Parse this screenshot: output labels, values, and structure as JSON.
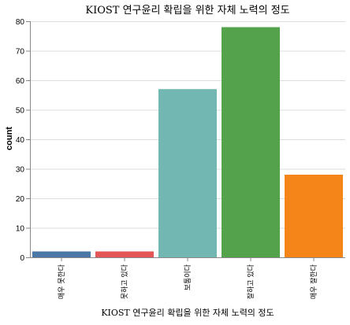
{
  "chart_data": {
    "type": "bar",
    "title": "KIOST 연구윤리 확립을 위한 자체 노력의 정도",
    "xlabel": "KIOST 연구윤리 확립을 위한 자체 노력의 정도",
    "ylabel": "count",
    "categories": [
      "매우 못한다",
      "못하고 있다",
      "보통이다",
      "잘하고 있다",
      "매우 잘한다"
    ],
    "values": [
      2,
      2,
      57,
      78,
      28
    ],
    "colors": [
      "#4c78a8",
      "#e45756",
      "#72b7b2",
      "#54a24b",
      "#f58518"
    ],
    "ylim": [
      0,
      80
    ],
    "yticks": [
      0,
      10,
      20,
      30,
      40,
      50,
      60,
      70,
      80
    ],
    "grid": true,
    "legend": "none"
  }
}
